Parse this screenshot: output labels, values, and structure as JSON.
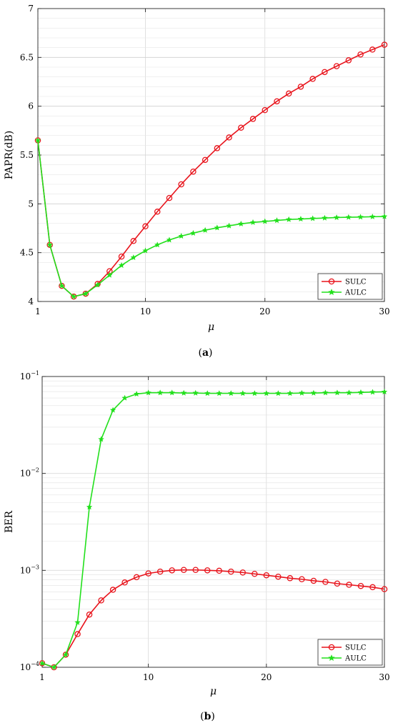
{
  "chart_data": [
    {
      "id": "a",
      "type": "line",
      "caption_open": "(",
      "caption_letter": "a",
      "caption_close": ")",
      "xlabel": "μ",
      "ylabel": "PAPR(dB)",
      "xlim": [
        1,
        30
      ],
      "ylim": [
        4,
        7
      ],
      "yscale": "linear",
      "grid": true,
      "legend_position": "bottom-right",
      "x_ticks": [
        1,
        10,
        20,
        30
      ],
      "x_tick_labels": [
        "1",
        "10",
        "20",
        "30"
      ],
      "y_ticks": [
        4,
        4.5,
        5,
        5.5,
        6,
        6.5,
        7
      ],
      "y_tick_labels": [
        "4",
        "4.5",
        "5",
        "5.5",
        "6",
        "6.5",
        "7"
      ],
      "series": [
        {
          "name": "SULC",
          "color": "#e8141c",
          "marker": "circle",
          "x": [
            1,
            2,
            3,
            4,
            5,
            6,
            7,
            8,
            9,
            10,
            11,
            12,
            13,
            14,
            15,
            16,
            17,
            18,
            19,
            20,
            21,
            22,
            23,
            24,
            25,
            26,
            27,
            28,
            29,
            30
          ],
          "y": [
            5.65,
            4.58,
            4.16,
            4.05,
            4.08,
            4.18,
            4.31,
            4.46,
            4.62,
            4.77,
            4.92,
            5.06,
            5.2,
            5.33,
            5.45,
            5.57,
            5.68,
            5.78,
            5.87,
            5.96,
            6.05,
            6.13,
            6.2,
            6.28,
            6.35,
            6.41,
            6.47,
            6.53,
            6.58,
            6.63
          ]
        },
        {
          "name": "AULC",
          "color": "#22e01c",
          "marker": "star",
          "x": [
            1,
            2,
            3,
            4,
            5,
            6,
            7,
            8,
            9,
            10,
            11,
            12,
            13,
            14,
            15,
            16,
            17,
            18,
            19,
            20,
            21,
            22,
            23,
            24,
            25,
            26,
            27,
            28,
            29,
            30
          ],
          "y": [
            5.65,
            4.58,
            4.16,
            4.05,
            4.08,
            4.17,
            4.27,
            4.37,
            4.45,
            4.52,
            4.58,
            4.63,
            4.67,
            4.7,
            4.73,
            4.755,
            4.775,
            4.795,
            4.81,
            4.82,
            4.83,
            4.84,
            4.845,
            4.85,
            4.855,
            4.86,
            4.863,
            4.865,
            4.868,
            4.87
          ]
        }
      ]
    },
    {
      "id": "b",
      "type": "line",
      "caption_open": "(",
      "caption_letter": "b",
      "caption_close": ")",
      "xlabel": "μ",
      "ylabel": "BER",
      "xlim": [
        1,
        30
      ],
      "ylim": [
        0.0001,
        0.1
      ],
      "yscale": "log",
      "grid": true,
      "legend_position": "bottom-right",
      "x_ticks": [
        1,
        10,
        20,
        30
      ],
      "x_tick_labels": [
        "1",
        "10",
        "20",
        "30"
      ],
      "y_tick_bases": [
        "10",
        "10",
        "10",
        "10"
      ],
      "y_tick_exponents": [
        "−4",
        "−3",
        "−2",
        "−1"
      ],
      "y_tick_values": [
        0.0001,
        0.001,
        0.01,
        0.1
      ],
      "series": [
        {
          "name": "SULC",
          "color": "#e8141c",
          "marker": "circle",
          "x": [
            1,
            2,
            3,
            4,
            5,
            6,
            7,
            8,
            9,
            10,
            11,
            12,
            13,
            14,
            15,
            16,
            17,
            18,
            19,
            20,
            21,
            22,
            23,
            24,
            25,
            26,
            27,
            28,
            29,
            30
          ],
          "y": [
            0.00011,
            0.0001,
            0.000135,
            0.00022,
            0.00035,
            0.00049,
            0.00063,
            0.00075,
            0.00085,
            0.00093,
            0.00097,
            0.001,
            0.00101,
            0.00101,
            0.001,
            0.00099,
            0.00097,
            0.00095,
            0.00092,
            0.00089,
            0.00086,
            0.00083,
            0.00081,
            0.00078,
            0.00076,
            0.00073,
            0.00071,
            0.00069,
            0.00067,
            0.00064
          ]
        },
        {
          "name": "AULC",
          "color": "#22e01c",
          "marker": "star",
          "x": [
            1,
            2,
            3,
            4,
            5,
            6,
            7,
            8,
            9,
            10,
            11,
            12,
            13,
            14,
            15,
            16,
            17,
            18,
            19,
            20,
            21,
            22,
            23,
            24,
            25,
            26,
            27,
            28,
            29,
            30
          ],
          "y": [
            0.00011,
            0.0001,
            0.000135,
            0.00029,
            0.0045,
            0.0225,
            0.045,
            0.06,
            0.066,
            0.068,
            0.068,
            0.068,
            0.0675,
            0.0675,
            0.067,
            0.067,
            0.067,
            0.067,
            0.067,
            0.067,
            0.067,
            0.067,
            0.0675,
            0.0675,
            0.068,
            0.068,
            0.068,
            0.0685,
            0.069,
            0.0695
          ]
        }
      ]
    }
  ]
}
